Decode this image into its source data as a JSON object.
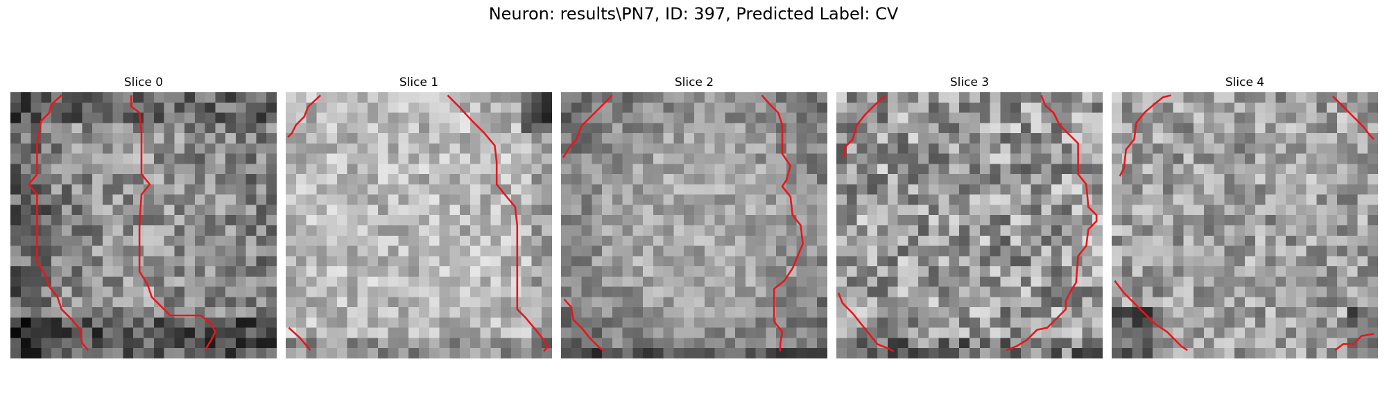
{
  "figure": {
    "title": "Neuron: results\\PN7, ID: 397, Predicted Label: CV"
  },
  "panels": [
    {
      "title": "Slice 0",
      "style": "dark-edges"
    },
    {
      "title": "Slice 1",
      "style": "bright"
    },
    {
      "title": "Slice 2",
      "style": "mid-vignette"
    },
    {
      "title": "Slice 3",
      "style": "mixed"
    },
    {
      "title": "Slice 4",
      "style": "mixed-dark-corners"
    }
  ],
  "colors": {
    "contour": "#e8161b",
    "background": "#ffffff"
  }
}
